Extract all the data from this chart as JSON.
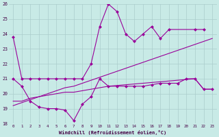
{
  "xlabel": "Windchill (Refroidissement éolien,°C)",
  "xlim": [
    -0.5,
    23.5
  ],
  "ylim": [
    18,
    26
  ],
  "xticks": [
    0,
    1,
    2,
    3,
    4,
    5,
    6,
    7,
    8,
    9,
    10,
    11,
    12,
    13,
    14,
    15,
    16,
    17,
    18,
    19,
    20,
    21,
    22,
    23
  ],
  "yticks": [
    18,
    19,
    20,
    21,
    22,
    23,
    24,
    25,
    26
  ],
  "bg_color": "#c8eae6",
  "line_color": "#990099",
  "grid_color": "#aacccc",
  "line1": {
    "x": [
      0,
      1,
      2,
      3,
      4,
      5,
      6,
      7,
      8,
      9,
      10,
      11,
      12,
      13,
      14,
      15,
      16,
      17,
      18,
      21,
      22
    ],
    "y": [
      23.8,
      21.0,
      21.0,
      21.0,
      21.0,
      21.0,
      21.0,
      21.0,
      21.0,
      22.0,
      24.5,
      26.0,
      25.5,
      24.0,
      23.5,
      24.0,
      24.5,
      23.7,
      24.3,
      24.3,
      24.3
    ]
  },
  "line2": {
    "x": [
      0,
      1,
      2,
      3,
      4,
      5,
      6,
      7,
      8,
      9,
      10,
      11,
      12,
      13,
      14,
      15,
      16,
      17,
      18,
      19,
      20,
      21,
      22,
      23
    ],
    "y": [
      19.5,
      19.5,
      19.7,
      19.8,
      19.9,
      20.0,
      20.1,
      20.1,
      20.2,
      20.3,
      20.4,
      20.5,
      20.55,
      20.6,
      20.65,
      20.7,
      20.75,
      20.8,
      20.85,
      20.9,
      20.95,
      21.0,
      20.3,
      20.3
    ]
  },
  "line3": {
    "x": [
      0,
      1,
      2,
      3,
      4,
      5,
      6,
      7,
      8,
      9,
      10,
      11,
      12,
      13,
      14,
      15,
      16,
      17,
      18,
      19,
      20,
      21,
      22,
      23
    ],
    "y": [
      21.0,
      20.5,
      19.5,
      19.1,
      19.0,
      19.0,
      18.9,
      18.2,
      19.3,
      19.8,
      21.0,
      20.5,
      20.5,
      20.5,
      20.5,
      20.5,
      20.6,
      20.7,
      20.7,
      20.7,
      21.0,
      21.0,
      20.3,
      20.3
    ]
  },
  "line4": {
    "x": [
      0,
      1,
      2,
      3,
      4,
      5,
      6,
      7,
      8,
      9,
      10,
      11,
      12,
      13,
      14,
      15,
      16,
      17,
      18,
      19,
      20,
      21,
      22,
      23
    ],
    "y": [
      19.2,
      19.4,
      19.6,
      19.8,
      20.0,
      20.2,
      20.4,
      20.5,
      20.7,
      20.9,
      21.1,
      21.3,
      21.5,
      21.7,
      21.9,
      22.1,
      22.3,
      22.5,
      22.7,
      22.9,
      23.1,
      23.3,
      23.5,
      23.7
    ]
  }
}
